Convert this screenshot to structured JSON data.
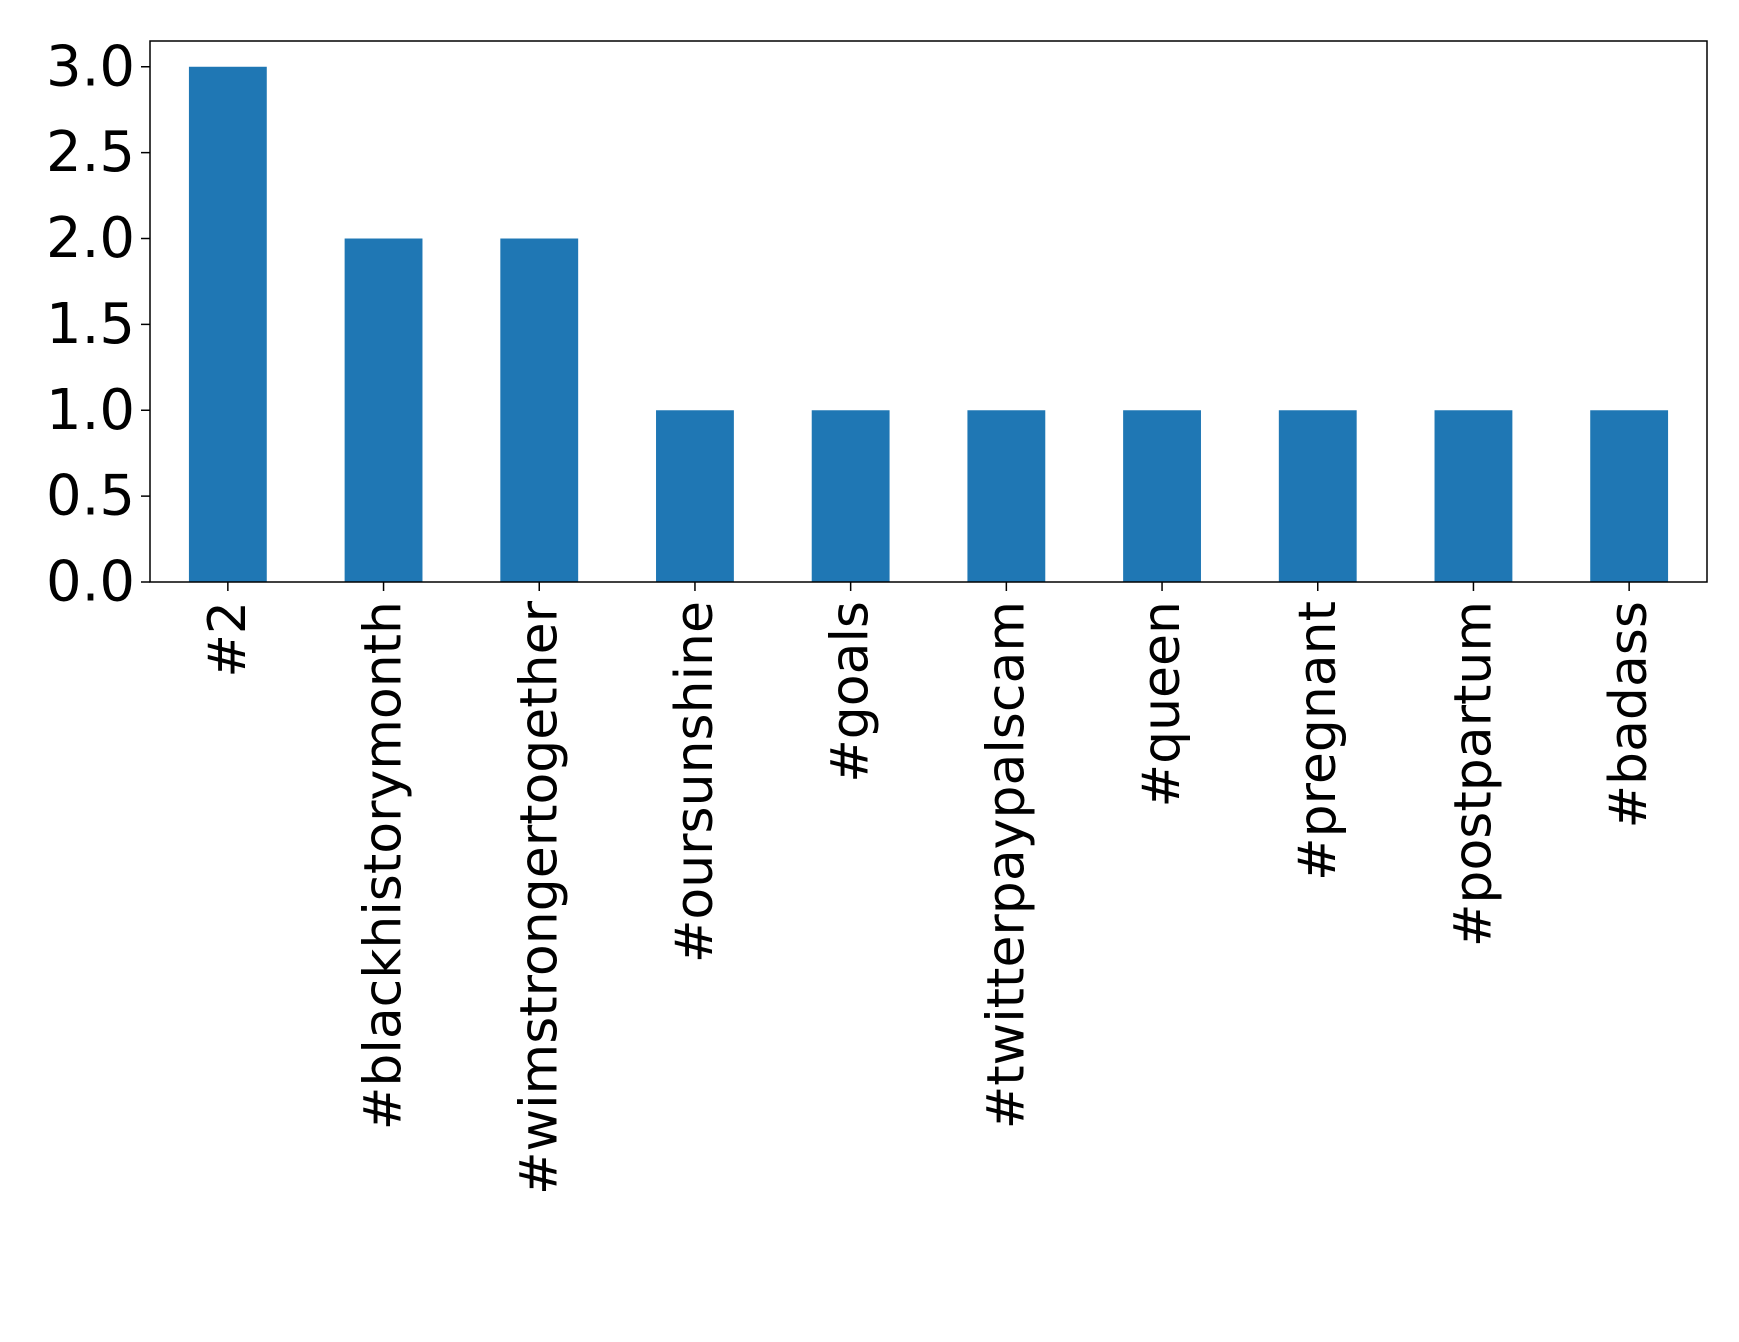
{
  "chart_data": {
    "type": "bar",
    "title": "",
    "xlabel": "",
    "ylabel": "",
    "categories": [
      "#2",
      "#blackhistorymonth",
      "#wimstrongertogether",
      "#oursunshine",
      "#goals",
      "#twitterpaypalscam",
      "#queen",
      "#pregnant",
      "#postpartum",
      "#badass"
    ],
    "values": [
      3,
      2,
      2,
      1,
      1,
      1,
      1,
      1,
      1,
      1
    ],
    "ylim": [
      0,
      3.15
    ],
    "yticks": [
      0.0,
      0.5,
      1.0,
      1.5,
      2.0,
      2.5,
      3.0
    ],
    "ytick_labels": [
      "0.0",
      "0.5",
      "1.0",
      "1.5",
      "2.0",
      "2.5",
      "3.0"
    ],
    "grid": false,
    "legend": "none",
    "bar_color": "#1f77b4"
  }
}
